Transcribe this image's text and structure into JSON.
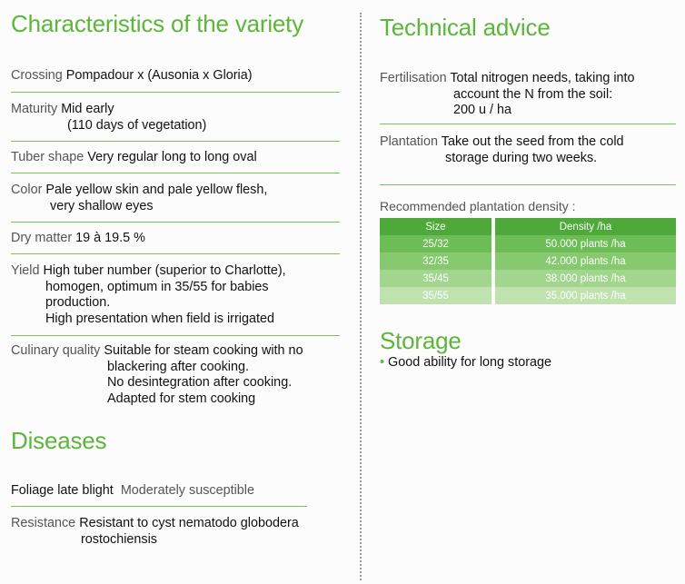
{
  "left": {
    "title": "Characteristics of the variety",
    "rows": [
      {
        "label": "Crossing",
        "value": "Pompadour x (Ausonia x Gloria)"
      },
      {
        "label": "Maturity",
        "value": "Mid early",
        "value2": "(110 days of vegetation)"
      },
      {
        "label": "Tuber shape",
        "value": "Very regular long to long oval"
      },
      {
        "label": "Color",
        "value": "Pale yellow skin and pale yellow flesh,",
        "value2": "very shallow eyes"
      },
      {
        "label": "Dry matter",
        "value": "19 à 19.5 %"
      },
      {
        "label": "Yield",
        "value": "High tuber number (superior to Charlotte),",
        "value2": "homogen, optimum in 35/55 for babies",
        "value3": "production.",
        "value4": "High presentation when field is irrigated"
      },
      {
        "label": "Culinary quality",
        "value": "Suitable for steam cooking with no",
        "value2": "blackering after cooking.",
        "value3": "No desintegration after cooking.",
        "value4": "Adapted for stem cooking"
      }
    ],
    "diseases": {
      "title": "Diseases",
      "rows": [
        {
          "label": "Foliage late blight",
          "value": "Moderately susceptible"
        },
        {
          "label": "Resistance",
          "value": "Resistant to cyst nematodo globodera",
          "value2": "rostochiensis"
        }
      ]
    }
  },
  "right": {
    "title": "Technical advice",
    "fertilisation": {
      "label": "Fertilisation",
      "value": "Total nitrogen needs, taking into",
      "value2": "account the N from the soil:",
      "value3": "200 u / ha"
    },
    "plantation": {
      "label": "Plantation",
      "value": "Take out the seed from the cold",
      "value2": "storage during two weeks."
    },
    "density": {
      "title": "Recommended plantation density :",
      "headers": [
        "Size",
        "Density /ha"
      ],
      "rows": [
        [
          "25/32",
          "50.000 plants /ha"
        ],
        [
          "32/35",
          "42.000 plants /ha"
        ],
        [
          "35/45",
          "38.000 plants /ha"
        ],
        [
          "35/55",
          "35.000 plants /ha"
        ]
      ]
    },
    "storage": {
      "title": "Storage",
      "item": "Good ability for long storage"
    }
  },
  "colors": {
    "accent": "#5cb63a",
    "rule": "#7cc45a"
  }
}
